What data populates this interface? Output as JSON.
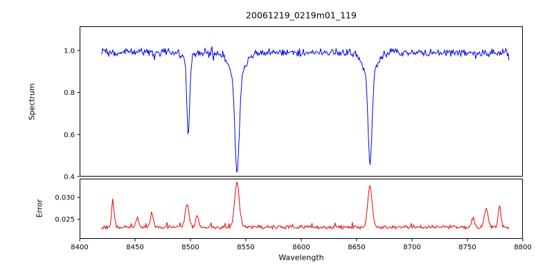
{
  "figure": {
    "title": "20061219_0219m01_119",
    "xlabel": "Wavelength",
    "background": "#ffffff",
    "frame_color": "#000000"
  },
  "axis_x": {
    "lim": [
      8400,
      8800
    ],
    "ticks": [
      8400,
      8450,
      8500,
      8550,
      8600,
      8650,
      8700,
      8750,
      8800
    ],
    "tick_labels": [
      "8400",
      "8450",
      "8500",
      "8550",
      "8600",
      "8650",
      "8700",
      "8750",
      "8800"
    ]
  },
  "chart_data": [
    {
      "type": "line",
      "name": "spectrum",
      "ylabel": "Spectrum",
      "color": "#0000ee",
      "xlim": [
        8400,
        8800
      ],
      "ylim": [
        0.4,
        1.115
      ],
      "yticks": [
        0.4,
        0.6,
        0.8,
        1.0
      ],
      "ytick_labels": [
        "0.4",
        "0.6",
        "0.8",
        "1.0"
      ],
      "grid": false,
      "legend": "none",
      "x_range": [
        8420,
        8788
      ],
      "sample_step": 0.7,
      "baseline": 0.99,
      "noise_amplitude": 0.022,
      "noise_seed": 2006,
      "absorption_lines": [
        {
          "center": 8498.0,
          "depth": 0.36,
          "fwhm": 3.0,
          "wing_depth": 0.03,
          "wing_fwhm": 9,
          "min_flux": 0.62
        },
        {
          "center": 8542.1,
          "depth": 0.45,
          "fwhm": 4.5,
          "wing_depth": 0.12,
          "wing_fwhm": 16,
          "min_flux": 0.43
        },
        {
          "center": 8662.1,
          "depth": 0.42,
          "fwhm": 4.0,
          "wing_depth": 0.11,
          "wing_fwhm": 14,
          "min_flux": 0.46
        }
      ]
    },
    {
      "type": "line",
      "name": "error",
      "ylabel": "Error",
      "color": "#ee0000",
      "xlim": [
        8400,
        8800
      ],
      "ylim": [
        0.0205,
        0.0343
      ],
      "yticks": [
        0.025,
        0.03
      ],
      "ytick_labels": [
        "0.025",
        "0.030"
      ],
      "grid": false,
      "legend": "none",
      "x_range": [
        8420,
        8788
      ],
      "sample_step": 0.7,
      "baseline": 0.0232,
      "noise_amplitude": 0.0005,
      "noise_seed": 1219,
      "peaks": [
        {
          "center": 8430,
          "height": 0.0055,
          "fwhm": 3.0,
          "peak_value": 0.0287
        },
        {
          "center": 8452,
          "height": 0.0022,
          "fwhm": 3.0,
          "peak_value": 0.0254
        },
        {
          "center": 8465,
          "height": 0.003,
          "fwhm": 3.0,
          "peak_value": 0.0262
        },
        {
          "center": 8497,
          "height": 0.0053,
          "fwhm": 4.0,
          "peak_value": 0.0285
        },
        {
          "center": 8506,
          "height": 0.0025,
          "fwhm": 3.0,
          "peak_value": 0.0257
        },
        {
          "center": 8542,
          "height": 0.0102,
          "fwhm": 5.0,
          "peak_value": 0.0334
        },
        {
          "center": 8662,
          "height": 0.0096,
          "fwhm": 4.5,
          "peak_value": 0.0328
        },
        {
          "center": 8755,
          "height": 0.0022,
          "fwhm": 3.0,
          "peak_value": 0.0254
        },
        {
          "center": 8767,
          "height": 0.0042,
          "fwhm": 4.0,
          "peak_value": 0.0274
        },
        {
          "center": 8779,
          "height": 0.0048,
          "fwhm": 3.0,
          "peak_value": 0.028
        }
      ]
    }
  ]
}
